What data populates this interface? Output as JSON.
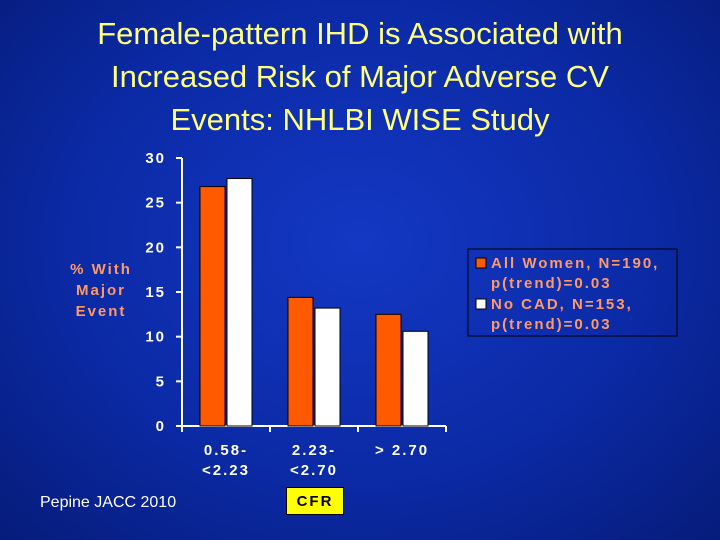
{
  "title_lines": [
    "Female-pattern IHD is Associated with",
    "Increased Risk of Major Adverse CV",
    "Events: NHLBI WISE Study"
  ],
  "citation": "Pepine JACC 2010",
  "chart_data": {
    "type": "bar",
    "title": "Female-pattern IHD is Associated with Increased Risk of Major Adverse CV Events: NHLBI WISE Study",
    "categories": [
      [
        "0.58-",
        "<2.23"
      ],
      [
        "2.23-",
        "<2.70"
      ],
      [
        "> 2.70"
      ]
    ],
    "series": [
      {
        "name": "All Women, N=190, p(trend)=0.03",
        "legend_lines": [
          "All Women, N=190,",
          "p(trend)=0.03"
        ],
        "color": "#ff5a00",
        "values": [
          26.8,
          14.4,
          12.5
        ]
      },
      {
        "name": "No CAD, N=153, p(trend)=0.03",
        "legend_lines": [
          "No CAD, N=153,",
          "p(trend)=0.03"
        ],
        "color": "#ffffff",
        "values": [
          27.7,
          13.2,
          10.6
        ]
      }
    ],
    "ylabel_lines": [
      "% With",
      "Major",
      "Event"
    ],
    "xlabel": "CFR",
    "ylim": [
      0,
      30
    ],
    "yticks": [
      "0",
      "5",
      "10",
      "15",
      "20",
      "25",
      "30"
    ],
    "legend_position": "right"
  },
  "colors": {
    "background": "#0b2aa6",
    "title": "#ffff80",
    "axis_label": "#ff9966",
    "xlabel_box": "#ffff00"
  }
}
